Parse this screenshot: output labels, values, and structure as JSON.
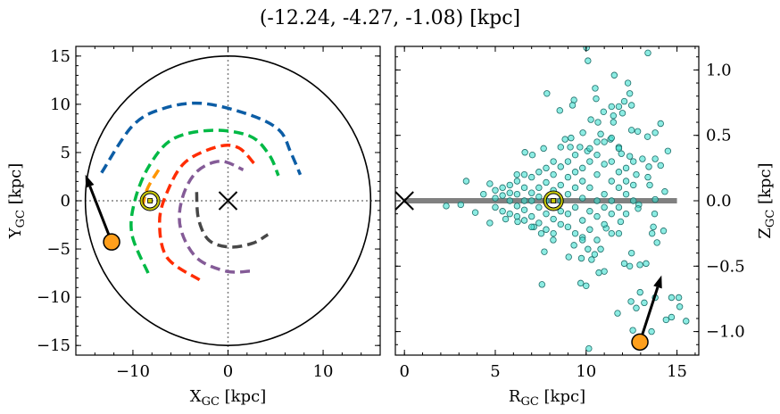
{
  "chart_data": [
    {
      "type": "line",
      "title": "(-12.24, -4.27, -1.08) [kpc]",
      "xlabel": "X",
      "xlabel_sub": "GC",
      "xlabel_unit": " [kpc]",
      "ylabel": "Y",
      "ylabel_sub": "GC",
      "ylabel_unit": " [kpc]",
      "xlim": [
        -16,
        16
      ],
      "ylim": [
        -16,
        16
      ],
      "xticks": [
        -10,
        0,
        10
      ],
      "xtick_labels": [
        "−10",
        "0",
        "10"
      ],
      "yticks": [
        -15,
        -10,
        -5,
        0,
        5,
        10,
        15
      ],
      "ytick_labels": [
        "−15",
        "−10",
        "−5",
        "0",
        "5",
        "10",
        "15"
      ],
      "boundary_circle": {
        "center": [
          0,
          0
        ],
        "radius": 15,
        "color": "#000000"
      },
      "reference_lines": {
        "x": 0,
        "y": 0,
        "style": "dotted",
        "color": "#808080"
      },
      "galactic_center_marker": {
        "x": 0,
        "y": 0,
        "marker": "x",
        "color": "#000000"
      },
      "sun_marker": {
        "x": -8.2,
        "y": 0,
        "symbol": "sun",
        "color": "#c8c800"
      },
      "object": {
        "x": -12.24,
        "y": -4.27,
        "color": "#ff9f1c"
      },
      "velocity_arrow": {
        "from": [
          -12.24,
          -4.27
        ],
        "to": [
          -15.0,
          2.7
        ],
        "color": "#000000"
      },
      "series": [
        {
          "color": "#0c5da5",
          "style": "dashed",
          "points": [
            [
              -13.3,
              2.9
            ],
            [
              -10.1,
              7.7
            ],
            [
              -7.0,
              9.5
            ],
            [
              -2.8,
              10.1
            ],
            [
              2.3,
              8.9
            ],
            [
              5.4,
              7.3
            ],
            [
              6.6,
              5.0
            ],
            [
              7.6,
              2.7
            ]
          ]
        },
        {
          "color": "#00b945",
          "style": "dashed",
          "points": [
            [
              -8.4,
              -7.5
            ],
            [
              -10.1,
              -3.5
            ],
            [
              -9.8,
              0.0
            ],
            [
              -8.3,
              3.6
            ],
            [
              -5.8,
              6.4
            ],
            [
              -1.7,
              7.3
            ],
            [
              2.3,
              6.7
            ],
            [
              4.3,
              4.8
            ],
            [
              5.3,
              2.6
            ]
          ]
        },
        {
          "color": "#ff9500",
          "style": "dashed",
          "points": [
            [
              -7.3,
              3.2
            ],
            [
              -8.5,
              1.2
            ],
            [
              -9.1,
              -1.1
            ]
          ]
        },
        {
          "color": "#ff2c00",
          "style": "dashed",
          "points": [
            [
              -3.0,
              -8.2
            ],
            [
              -6.4,
              -5.9
            ],
            [
              -7.2,
              -2.2
            ],
            [
              -6.4,
              0.9
            ],
            [
              -4.5,
              4.0
            ],
            [
              -1.1,
              5.6
            ],
            [
              1.1,
              5.5
            ],
            [
              2.8,
              3.8
            ]
          ]
        },
        {
          "color": "#845b97",
          "style": "dashed",
          "points": [
            [
              2.3,
              -7.3
            ],
            [
              -0.2,
              -7.3
            ],
            [
              -3.3,
              -5.9
            ],
            [
              -5.0,
              -2.8
            ],
            [
              -4.8,
              0.3
            ],
            [
              -3.3,
              3.0
            ],
            [
              -0.8,
              4.1
            ],
            [
              1.6,
              3.2
            ]
          ]
        },
        {
          "color": "#474747",
          "style": "dashed",
          "points": [
            [
              -3.3,
              0.9
            ],
            [
              -3.1,
              -1.9
            ],
            [
              -2.0,
              -4.1
            ],
            [
              0.2,
              -4.8
            ],
            [
              2.6,
              -4.4
            ],
            [
              4.2,
              -3.5
            ]
          ]
        }
      ]
    },
    {
      "type": "scatter",
      "xlabel": "R",
      "xlabel_sub": "GC",
      "xlabel_unit": " [kpc]",
      "ylabel": "Z",
      "ylabel_sub": "GC",
      "ylabel_unit": " [kpc]",
      "ylabel_position": "right",
      "xlim": [
        -0.5,
        16.2
      ],
      "ylim": [
        -1.18,
        1.18
      ],
      "xticks": [
        0,
        5,
        10,
        15
      ],
      "xtick_labels": [
        "0",
        "5",
        "10",
        "15"
      ],
      "yticks": [
        -1.0,
        -0.5,
        0.0,
        0.5,
        1.0
      ],
      "ytick_labels": [
        "−1.0",
        "−0.5",
        "0.0",
        "0.5",
        "1.0"
      ],
      "disk_line": {
        "x": [
          0,
          15
        ],
        "y": 0,
        "color": "#808080"
      },
      "galactic_center_marker": {
        "x": 0,
        "y": 0,
        "marker": "x",
        "color": "#000000"
      },
      "sun_marker": {
        "x": 8.2,
        "y": 0,
        "symbol": "sun",
        "color": "#c8c800"
      },
      "object": {
        "x": 12.96,
        "y": -1.08,
        "color": "#ff9f1c"
      },
      "velocity_arrow": {
        "from": [
          12.96,
          -1.08
        ],
        "to": [
          14.15,
          -0.57
        ],
        "color": "#000000"
      },
      "point_color": "#40e0d0",
      "point_edge_color": "#1f6f6a",
      "points": [
        [
          10.02,
          1.17
        ],
        [
          10.1,
          1.07
        ],
        [
          13.4,
          1.13
        ],
        [
          11.55,
          0.96
        ],
        [
          12.3,
          0.9
        ],
        [
          10.5,
          0.86
        ],
        [
          7.84,
          0.82
        ],
        [
          10.55,
          0.78
        ],
        [
          12.4,
          0.82
        ],
        [
          9.33,
          0.77
        ],
        [
          9.25,
          0.73
        ],
        [
          8.55,
          0.69
        ],
        [
          12.1,
          0.76
        ],
        [
          12.5,
          0.73
        ],
        [
          11.4,
          0.72
        ],
        [
          11.8,
          0.72
        ],
        [
          10.96,
          0.68
        ],
        [
          11.5,
          0.65
        ],
        [
          12.0,
          0.67
        ],
        [
          10.26,
          0.62
        ],
        [
          10.65,
          0.6
        ],
        [
          11.5,
          0.6
        ],
        [
          14.1,
          0.59
        ],
        [
          12.5,
          0.54
        ],
        [
          12.84,
          0.53
        ],
        [
          13.38,
          0.49
        ],
        [
          13.8,
          0.52
        ],
        [
          8.84,
          0.47
        ],
        [
          9.82,
          0.52
        ],
        [
          10.8,
          0.51
        ],
        [
          11.34,
          0.47
        ],
        [
          14.5,
          0.38
        ],
        [
          13.8,
          0.32
        ],
        [
          14.1,
          0.27
        ],
        [
          14.33,
          0.07
        ],
        [
          13.8,
          0.01
        ],
        [
          12.9,
          -0.03
        ],
        [
          12.86,
          -0.06
        ],
        [
          13.77,
          -0.1
        ],
        [
          14.26,
          -0.23
        ],
        [
          13.63,
          -0.25
        ],
        [
          13.9,
          -0.32
        ],
        [
          13.7,
          -0.2
        ],
        [
          12.5,
          -0.4
        ],
        [
          12.1,
          -0.48
        ],
        [
          12.4,
          -0.5
        ],
        [
          12.96,
          -0.49
        ],
        [
          13.3,
          -0.48
        ],
        [
          10.7,
          -0.55
        ],
        [
          11.0,
          -0.54
        ],
        [
          10.3,
          -0.45
        ],
        [
          9.74,
          -0.44
        ],
        [
          9.04,
          -0.43
        ],
        [
          7.7,
          -0.39
        ],
        [
          7.57,
          -0.64
        ],
        [
          9.7,
          -0.63
        ],
        [
          10.0,
          -0.65
        ],
        [
          12.97,
          -0.7
        ],
        [
          12.47,
          -0.77
        ],
        [
          12.76,
          -0.82
        ],
        [
          13.2,
          -0.78
        ],
        [
          13.8,
          -0.74
        ],
        [
          14.7,
          -0.74
        ],
        [
          15.1,
          -0.74
        ],
        [
          15.15,
          -0.81
        ],
        [
          14.7,
          -0.89
        ],
        [
          14.4,
          -0.91
        ],
        [
          15.5,
          -0.92
        ],
        [
          11.73,
          -0.86
        ],
        [
          12.57,
          -0.99
        ],
        [
          13.6,
          -1.0
        ],
        [
          10.15,
          -1.13
        ],
        [
          2.3,
          -0.04
        ],
        [
          3.1,
          -0.03
        ],
        [
          3.4,
          0.15
        ],
        [
          3.9,
          -0.09
        ],
        [
          4.7,
          -0.17
        ],
        [
          4.7,
          0.13
        ],
        [
          4.35,
          0.05
        ],
        [
          6.63,
          0.37
        ],
        [
          7.04,
          0.35
        ],
        [
          7.66,
          0.4
        ],
        [
          6.19,
          0.2
        ],
        [
          8.6,
          0.41
        ],
        [
          9.13,
          0.41
        ],
        [
          9.66,
          0.41
        ],
        [
          9.17,
          0.48
        ],
        [
          10.07,
          0.38
        ],
        [
          10.6,
          0.45
        ],
        [
          11.4,
          0.48
        ],
        [
          11.8,
          0.41
        ],
        [
          11.94,
          0.36
        ],
        [
          12.4,
          0.34
        ],
        [
          13.1,
          0.32
        ],
        [
          13.45,
          0.26
        ],
        [
          13.4,
          0.18
        ],
        [
          13.5,
          0.12
        ],
        [
          12.76,
          0.2
        ],
        [
          7.53,
          -0.25
        ],
        [
          8.19,
          -0.3
        ],
        [
          7.12,
          -0.2
        ],
        [
          6.23,
          -0.16
        ],
        [
          5.57,
          -0.14
        ],
        [
          10.8,
          -0.37
        ],
        [
          11.8,
          -0.25
        ],
        [
          11.1,
          -0.21
        ],
        [
          11.9,
          -0.16
        ],
        [
          9.8,
          -0.28
        ],
        [
          10.1,
          -0.37
        ],
        [
          9.33,
          -0.34
        ],
        [
          10.47,
          -0.41
        ],
        [
          5.0,
          0.02
        ],
        [
          5.0,
          -0.05
        ],
        [
          5.0,
          0.08
        ],
        [
          5.4,
          -0.08
        ],
        [
          5.4,
          0.04
        ],
        [
          5.4,
          0.1
        ],
        [
          5.8,
          0.0
        ],
        [
          5.8,
          -0.1
        ],
        [
          5.8,
          0.12
        ],
        [
          5.8,
          0.06
        ],
        [
          6.2,
          -0.12
        ],
        [
          6.2,
          0.05
        ],
        [
          6.2,
          0.15
        ],
        [
          6.2,
          -0.04
        ],
        [
          6.6,
          0.0
        ],
        [
          6.6,
          -0.15
        ],
        [
          6.6,
          0.1
        ],
        [
          6.6,
          0.2
        ],
        [
          6.6,
          -0.07
        ],
        [
          7.0,
          0.06
        ],
        [
          7.0,
          -0.12
        ],
        [
          7.0,
          0.18
        ],
        [
          7.0,
          -0.2
        ],
        [
          7.0,
          0.0
        ],
        [
          7.4,
          0.1
        ],
        [
          7.4,
          -0.05
        ],
        [
          7.4,
          0.22
        ],
        [
          7.4,
          -0.17
        ],
        [
          7.4,
          0.03
        ],
        [
          7.8,
          -0.1
        ],
        [
          7.8,
          0.14
        ],
        [
          7.8,
          0.25
        ],
        [
          7.8,
          -0.22
        ],
        [
          7.8,
          0.0
        ],
        [
          8.2,
          0.08
        ],
        [
          8.2,
          -0.14
        ],
        [
          8.2,
          0.2
        ],
        [
          8.2,
          -0.25
        ],
        [
          8.2,
          0.3
        ],
        [
          8.6,
          0.0
        ],
        [
          8.6,
          0.12
        ],
        [
          8.6,
          -0.18
        ],
        [
          8.6,
          0.26
        ],
        [
          8.6,
          -0.08
        ],
        [
          9.0,
          0.05
        ],
        [
          9.0,
          -0.2
        ],
        [
          9.0,
          0.18
        ],
        [
          9.0,
          0.3
        ],
        [
          9.0,
          -0.1
        ],
        [
          9.4,
          -0.05
        ],
        [
          9.4,
          0.22
        ],
        [
          9.4,
          -0.25
        ],
        [
          9.4,
          0.1
        ],
        [
          9.4,
          0.35
        ],
        [
          9.8,
          0.02
        ],
        [
          9.8,
          -0.15
        ],
        [
          9.8,
          0.25
        ],
        [
          9.8,
          -0.3
        ],
        [
          9.8,
          0.15
        ],
        [
          10.2,
          0.1
        ],
        [
          10.2,
          -0.08
        ],
        [
          10.2,
          0.3
        ],
        [
          10.2,
          -0.22
        ],
        [
          10.2,
          0.4
        ],
        [
          10.6,
          -0.12
        ],
        [
          10.6,
          0.2
        ],
        [
          10.6,
          0.0
        ],
        [
          10.6,
          0.35
        ],
        [
          10.6,
          -0.3
        ],
        [
          11.0,
          0.05
        ],
        [
          11.0,
          -0.18
        ],
        [
          11.0,
          0.28
        ],
        [
          11.0,
          0.45
        ],
        [
          11.0,
          -0.05
        ],
        [
          11.4,
          0.15
        ],
        [
          11.4,
          -0.1
        ],
        [
          11.4,
          0.3
        ],
        [
          11.4,
          -0.25
        ],
        [
          11.4,
          0.0
        ],
        [
          11.8,
          0.22
        ],
        [
          11.8,
          -0.05
        ],
        [
          11.8,
          0.4
        ],
        [
          11.8,
          0.1
        ],
        [
          12.2,
          0.05
        ],
        [
          12.2,
          0.25
        ],
        [
          12.2,
          -0.1
        ],
        [
          12.2,
          0.15
        ],
        [
          12.6,
          0.3
        ],
        [
          12.6,
          0.0
        ],
        [
          12.6,
          0.12
        ]
      ]
    }
  ]
}
